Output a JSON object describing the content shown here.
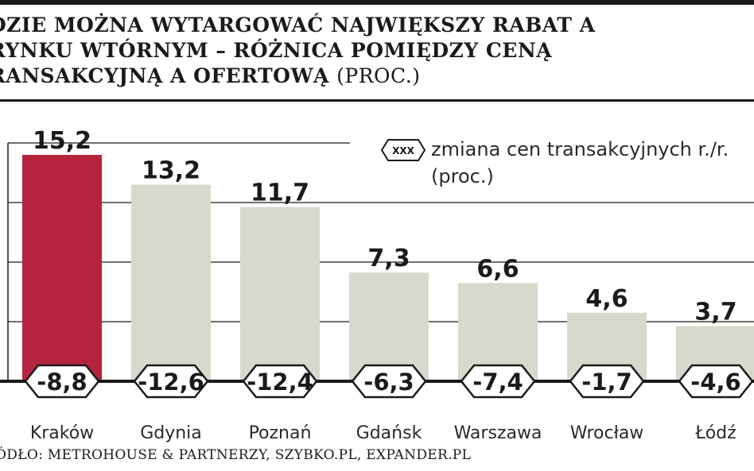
{
  "title": {
    "text": "DZIE MOŻNA WYTARGOWAĆ NAJWIĘKSZY RABAT A RYNKU WTÓRNYM – RÓŻNICA POMIĘDZY CENĄ RANSAKCYJNĄ A OFERTOWĄ",
    "unit": "(PROC.)"
  },
  "legend": {
    "marker": "XXX",
    "text": "zmiana cen transakcyjnych r./r. (proc.)"
  },
  "source": "ÓDŁO: METROHOUSE & PARTNERZY, SZYBKO.PL, EXPANDER.PL",
  "colors": {
    "highlight": "#b5233f",
    "bar": "#d8d8cc",
    "axis": "#1a1a1a"
  },
  "chart_data": {
    "type": "bar",
    "categories": [
      "Kraków",
      "Gdynia",
      "Poznań",
      "Gdańsk",
      "Warszawa",
      "Wrocław",
      "Łódź"
    ],
    "values": [
      15.2,
      13.2,
      11.7,
      7.3,
      6.6,
      4.6,
      3.7
    ],
    "value_labels": [
      "15,2",
      "13,2",
      "11,7",
      "7,3",
      "6,6",
      "4,6",
      "3,7"
    ],
    "changes": [
      -8.8,
      -12.6,
      -12.4,
      -6.3,
      -7.4,
      -1.7,
      -4.6
    ],
    "change_labels": [
      "-8,8",
      "-12,6",
      "-12,4",
      "-6,3",
      "-7,4",
      "-1,7",
      "-4,6"
    ],
    "highlight_index": 0,
    "ylim": [
      0,
      16
    ],
    "gridlines": [
      0,
      4,
      8,
      12,
      16
    ],
    "grid": true
  }
}
